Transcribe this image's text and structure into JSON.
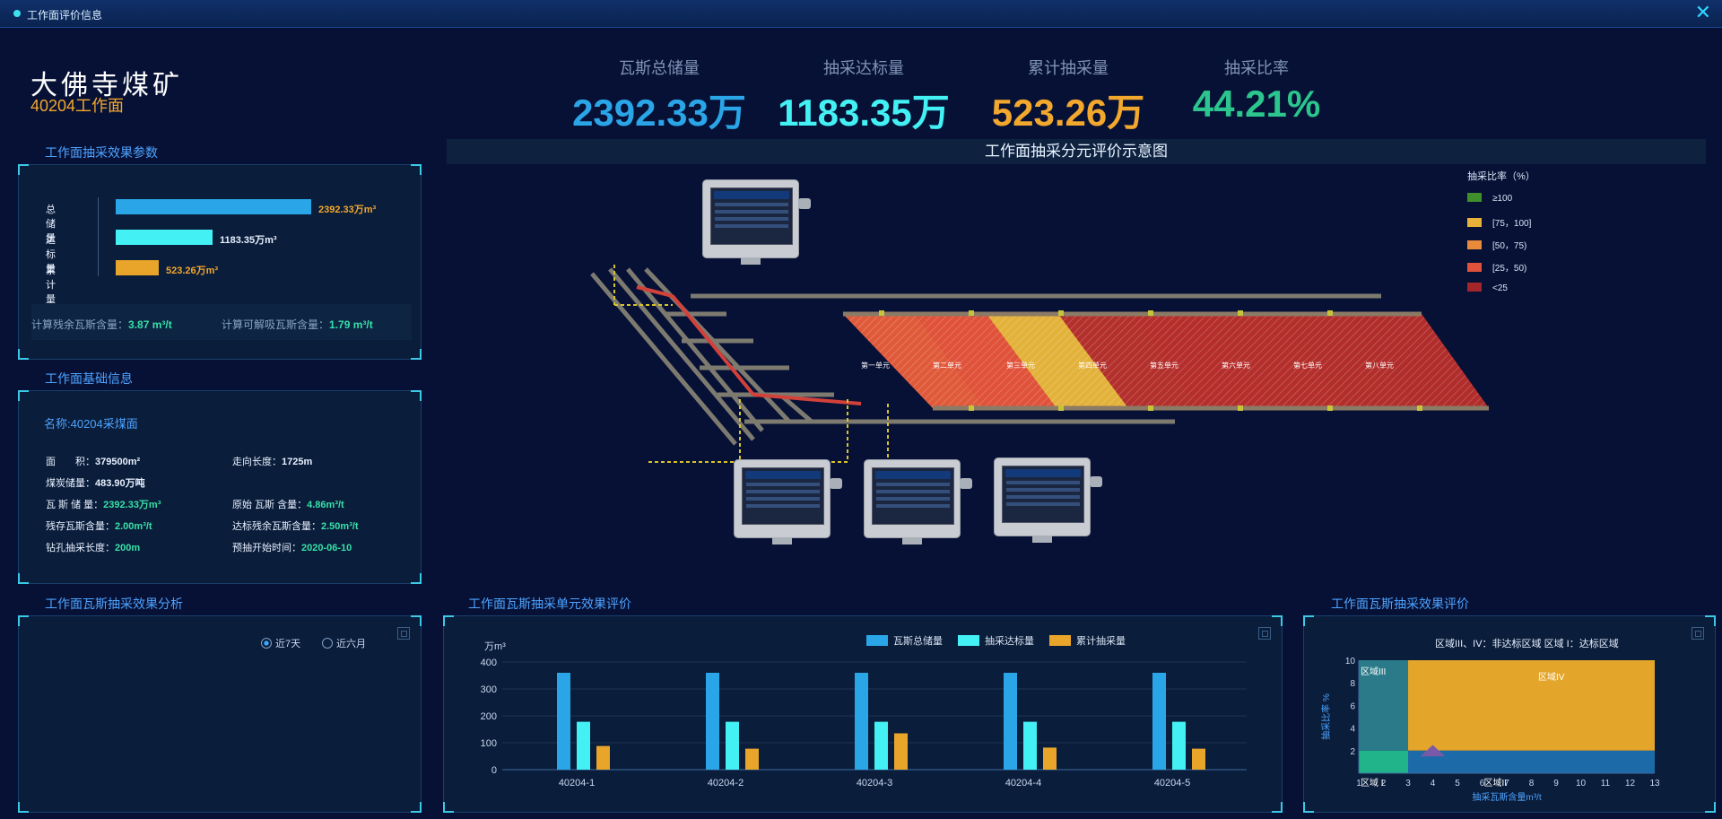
{
  "window": {
    "title": "工作面评价信息"
  },
  "mine": {
    "name": "大佛寺煤矿",
    "face": "40204工作面"
  },
  "stats": [
    {
      "label": "瓦斯总储量",
      "value": "2392.33万",
      "color": "#2aa6e8"
    },
    {
      "label": "抽采达标量",
      "value": "1183.35万",
      "color": "#43f0f4"
    },
    {
      "label": "累计抽采量",
      "value": "523.26万",
      "color": "#f2a72d"
    },
    {
      "label": "抽采比率",
      "value": "44.21%",
      "color": "#2bc58d"
    }
  ],
  "params": {
    "title": "工作面抽采效果参数",
    "bars": [
      {
        "label": "总储量",
        "value": "2392.33万m³",
        "amount": 2392.33,
        "color": "#2aa6e8"
      },
      {
        "label": "达标量",
        "value": "1183.35万m³",
        "amount": 1183.35,
        "color": "#43f0f4"
      },
      {
        "label": "累计量",
        "value": "523.26万m³",
        "amount": 523.26,
        "color": "#f2a72d"
      }
    ],
    "calc1_label": "计算残余瓦斯含量：",
    "calc1_value": "3.87 m³/t",
    "calc2_label": "计算可解吸瓦斯含量：",
    "calc2_value": "1.79 m³/t"
  },
  "basic": {
    "title": "工作面基础信息",
    "name": "名称:40204采煤面",
    "area_label": "面　　积：",
    "area_value": "379500m²",
    "strike_label": "走向长度：",
    "strike_value": "1725m",
    "coal_label": "煤炭储量：",
    "coal_value": "483.90万吨",
    "gas_label": "瓦 斯 储 量：",
    "gas_value": "2392.33万m³",
    "orig_label": "原始 瓦斯 含量：",
    "orig_value": "4.86m³/t",
    "residual_label": "残存瓦斯含量：",
    "residual_value": "2.00m³/t",
    "target_label": "达标残余瓦斯含量：",
    "target_value": "2.50m³/t",
    "drill_label": "钻孔抽采长度：",
    "drill_value": "200m",
    "start_label": "预抽开始时间：",
    "start_value": "2020-06-10"
  },
  "analysis": {
    "title": "工作面瓦斯抽采效果分析",
    "radio1": "近7天",
    "radio2": "近六月"
  },
  "diagram": {
    "title": "工作面抽采分元评价示意图",
    "units": [
      "第一单元",
      "第二单元",
      "第三单元",
      "第四单元",
      "第五单元",
      "第六单元",
      "第七单元",
      "第八单元"
    ],
    "legend_title": "抽采比率（%）",
    "legend": [
      {
        "label": "≥100",
        "color": "#3f8f2a"
      },
      {
        "label": "[75，100]",
        "color": "#e8b23a"
      },
      {
        "label": "[50，75)",
        "color": "#e98a3b"
      },
      {
        "label": "[25，50)",
        "color": "#e0523a"
      },
      {
        "label": "<25",
        "color": "#a3262a"
      }
    ]
  },
  "unit_eval": {
    "title": "工作面瓦斯抽采单元效果评价",
    "yunit": "万m³",
    "legend": [
      {
        "label": "瓦斯总储量",
        "color": "#2aa6e8"
      },
      {
        "label": "抽采达标量",
        "color": "#43f0f4"
      },
      {
        "label": "累计抽采量",
        "color": "#e8a52a"
      }
    ]
  },
  "effect_eval": {
    "title": "工作面瓦斯抽采效果评价",
    "caption": "区域III、IV：非达标区域 区域 I：达标区域",
    "region3": "区域III",
    "region4": "区域IV",
    "region1": "区域 I",
    "region2": "区域II",
    "ylabel": "抽采比率 %",
    "xlabel": "抽采瓦斯含量m³/t"
  },
  "chart_data": [
    {
      "type": "bar",
      "title": "工作面瓦斯抽采单元效果评价",
      "categories": [
        "40204-1",
        "40204-2",
        "40204-3",
        "40204-4",
        "40204-5"
      ],
      "ylabel": "万m³",
      "ylim": [
        0,
        400
      ],
      "yticks": [
        0,
        100,
        200,
        300,
        400
      ],
      "series": [
        {
          "name": "瓦斯总储量",
          "values": [
            360,
            360,
            360,
            360,
            360
          ]
        },
        {
          "name": "抽采达标量",
          "values": [
            178,
            178,
            178,
            178,
            178
          ]
        },
        {
          "name": "累计抽采量",
          "values": [
            88,
            78,
            135,
            82,
            78
          ]
        }
      ]
    },
    {
      "type": "area",
      "title": "工作面瓦斯抽采效果评价",
      "xlabel": "抽采瓦斯含量m³/t",
      "ylabel": "抽采比率 %",
      "xlim": [
        1,
        13
      ],
      "ylim": [
        0,
        10
      ],
      "xticks": [
        1,
        2,
        3,
        4,
        5,
        6,
        7,
        8,
        9,
        10,
        11,
        12,
        13
      ],
      "yticks": [
        2,
        4,
        6,
        8,
        10
      ],
      "regions": [
        {
          "name": "区域III",
          "x": [
            1,
            3
          ],
          "y": [
            2,
            10
          ]
        },
        {
          "name": "区域IV",
          "x": [
            3,
            13
          ],
          "y": [
            2,
            10
          ]
        },
        {
          "name": "区域 I",
          "x": [
            1,
            3
          ],
          "y": [
            0,
            2
          ]
        },
        {
          "name": "区域II",
          "x": [
            3,
            13
          ],
          "y": [
            0,
            2
          ]
        }
      ]
    }
  ]
}
